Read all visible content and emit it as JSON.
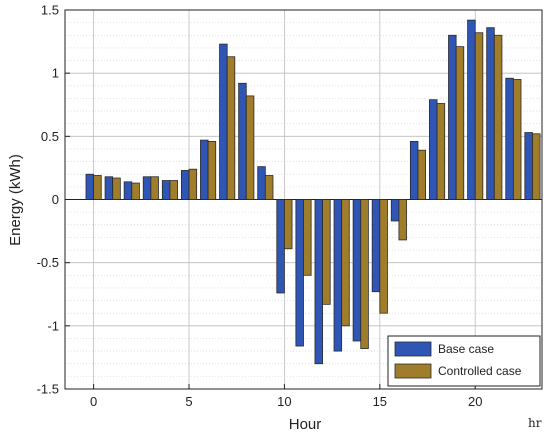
{
  "chart_data": {
    "type": "bar",
    "xlabel": "Hour",
    "ylabel": "Energy (kWh)",
    "x_unit": "hr",
    "xlim": [
      -1.5,
      23.5
    ],
    "ylim": [
      -1.5,
      1.5
    ],
    "x_ticks": [
      0,
      5,
      10,
      15,
      20
    ],
    "y_ticks": [
      -1.5,
      -1,
      -0.5,
      0,
      0.5,
      1,
      1.5
    ],
    "y_tick_labels": [
      "-1.5",
      "-1",
      "-0.5",
      "0",
      "0.5",
      "1",
      "1.5"
    ],
    "grid": true,
    "legend_position": "bottom-right",
    "categories": [
      0,
      1,
      2,
      3,
      4,
      5,
      6,
      7,
      8,
      9,
      10,
      11,
      12,
      13,
      14,
      15,
      16,
      17,
      18,
      19,
      20,
      21,
      22,
      23
    ],
    "series": [
      {
        "name": "Base case",
        "color": "#2f55b5",
        "values": [
          0.2,
          0.18,
          0.14,
          0.18,
          0.15,
          0.23,
          0.47,
          1.23,
          0.92,
          0.26,
          -0.74,
          -1.16,
          -1.3,
          -1.2,
          -1.12,
          -0.73,
          -0.17,
          0.46,
          0.79,
          1.3,
          1.42,
          1.36,
          0.96,
          0.53
        ]
      },
      {
        "name": "Controlled case",
        "color": "#a07d2b",
        "values": [
          0.19,
          0.17,
          0.13,
          0.18,
          0.15,
          0.24,
          0.46,
          1.13,
          0.82,
          0.19,
          -0.39,
          -0.6,
          -0.83,
          -1.0,
          -1.18,
          -0.9,
          -0.32,
          0.39,
          0.76,
          1.21,
          1.32,
          1.3,
          0.95,
          0.52
        ]
      }
    ]
  }
}
